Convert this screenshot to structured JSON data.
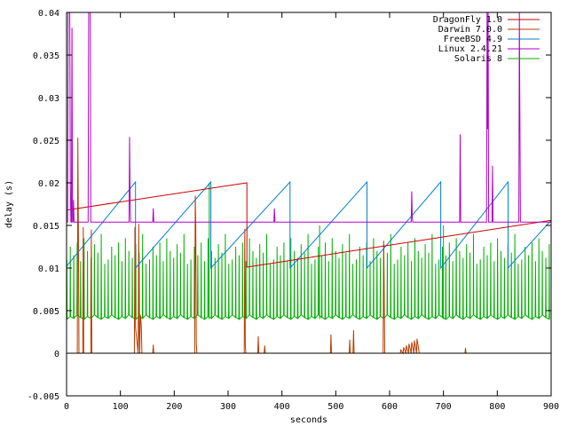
{
  "chart_data": {
    "type": "line",
    "title": "",
    "xlabel": "seconds",
    "ylabel": "delay (s)",
    "xlim": [
      0,
      900
    ],
    "ylim": [
      -0.005,
      0.04
    ],
    "grid": false,
    "legend_position": "top-right",
    "xticks": [
      0,
      100,
      200,
      300,
      400,
      500,
      600,
      700,
      800,
      900
    ],
    "xtick_labels": [
      "0",
      "100",
      "200",
      "300",
      "400",
      "500",
      "600",
      "700",
      "800",
      "900"
    ],
    "yticks": [
      -0.005,
      0,
      0.005,
      0.01,
      0.015,
      0.02,
      0.025,
      0.03,
      0.035,
      0.04
    ],
    "ytick_labels": [
      "-0.005",
      "0",
      "0.005",
      "0.01",
      "0.015",
      "0.02",
      "0.025",
      "0.03",
      "0.035",
      "0.04"
    ],
    "series": [
      {
        "name": "DragonFly 1.0",
        "color": "#cc0000",
        "x": [
          0,
          335,
          335,
          900
        ],
        "y": [
          0.0168,
          0.02,
          0.0101,
          0.0156
        ]
      },
      {
        "name": "Darwin 7.0.0",
        "color": "#b83c00",
        "x": [
          0,
          20,
          21,
          22,
          23,
          30,
          31,
          32,
          45,
          46,
          47,
          120,
          126,
          127,
          128,
          133,
          134,
          135,
          136,
          137,
          138,
          139,
          140,
          160,
          161,
          162,
          238,
          239,
          240,
          241,
          242,
          330,
          331,
          332,
          333,
          355,
          356,
          357,
          367,
          368,
          369,
          490,
          491,
          492,
          525,
          526,
          527,
          532,
          533,
          534,
          588,
          589,
          590,
          591,
          610,
          620,
          621,
          625,
          626,
          630,
          631,
          635,
          636,
          640,
          641,
          645,
          646,
          650,
          651,
          655,
          740,
          741,
          742,
          900
        ],
        "y": [
          0,
          0,
          0.0253,
          0.0151,
          0,
          0,
          0.0148,
          0,
          0,
          0.0145,
          0,
          0,
          0,
          0.0148,
          0.003,
          0,
          0.0152,
          0.002,
          0,
          0.0045,
          0.004,
          0.003,
          0,
          0,
          0.001,
          0,
          0,
          0.0185,
          0.015,
          0.0012,
          0,
          0,
          0.0146,
          0.001,
          0,
          0,
          0.002,
          0,
          0,
          0.0009,
          0,
          0,
          0.0022,
          0,
          0,
          0.0016,
          0,
          0,
          0.0027,
          0,
          0,
          0.0132,
          0.007,
          0,
          0,
          0,
          0.0004,
          0,
          0.0007,
          0,
          0.0009,
          0,
          0.0011,
          0,
          0.0013,
          0,
          0.0015,
          0,
          0.0017,
          0,
          0,
          0.0006,
          0,
          0
        ]
      },
      {
        "name": "FreeBSD 4.9",
        "color": "#0080d0",
        "x": [
          0,
          128,
          128,
          268,
          268,
          415,
          415,
          558,
          558,
          695,
          695,
          820,
          820,
          900
        ],
        "y": [
          0.0102,
          0.0201,
          0.01,
          0.0201,
          0.01,
          0.0201,
          0.01,
          0.0201,
          0.01,
          0.0201,
          0.01,
          0.0201,
          0.01,
          0.0156
        ]
      },
      {
        "name": "Linux 2.4.21",
        "color": "#b000c8",
        "x": [
          0,
          2,
          3,
          4,
          5,
          6,
          7,
          8,
          9,
          10,
          11,
          12,
          13,
          14,
          15,
          16,
          17,
          40,
          41,
          42,
          43,
          44,
          45,
          46,
          47,
          115,
          116,
          117,
          118,
          119,
          120,
          121,
          122,
          160,
          161,
          162,
          385,
          386,
          387,
          640,
          641,
          642,
          643,
          730,
          731,
          732,
          733,
          780,
          781,
          782,
          783,
          784,
          790,
          791,
          792,
          793,
          840,
          841,
          842,
          843,
          900
        ],
        "y": [
          0.0154,
          0.0154,
          0.04,
          0.04,
          0.04,
          0.04,
          0.02,
          0.0154,
          0.0154,
          0.0382,
          0.0154,
          0.0154,
          0.018,
          0.0154,
          0.0154,
          0.0154,
          0.0154,
          0.0154,
          0.04,
          0.04,
          0.04,
          0.04,
          0.0154,
          0.0154,
          0.0154,
          0.0154,
          0.0154,
          0.0254,
          0.018,
          0.0154,
          0.0154,
          0.0154,
          0.0154,
          0.0154,
          0.017,
          0.0154,
          0.0154,
          0.017,
          0.0154,
          0.0154,
          0.019,
          0.016,
          0.0154,
          0.0154,
          0.0257,
          0.0154,
          0.0154,
          0.0154,
          0.04,
          0.0263,
          0.04,
          0.0154,
          0.0154,
          0.022,
          0.0154,
          0.0154,
          0.0154,
          0.04,
          0.0276,
          0.0154,
          0.0154
        ]
      },
      {
        "name": "Solaris 8",
        "color": "#00b000",
        "pattern": "sawtooth",
        "period_seconds": 6.4,
        "x_range": [
          0,
          900
        ],
        "low_values": [
          0.004,
          0.0043,
          0.0041,
          0.0045,
          0.0042
        ],
        "high_values": [
          0.011,
          0.0125,
          0.0115,
          0.013,
          0.0108,
          0.0135,
          0.012,
          0.0112,
          0.0128,
          0.0118,
          0.014,
          0.0105
        ],
        "spikes": [
          {
            "x": 265,
            "y": 0.02
          },
          {
            "x": 470,
            "y": 0.015
          },
          {
            "x": 700,
            "y": 0.015
          }
        ]
      }
    ]
  }
}
